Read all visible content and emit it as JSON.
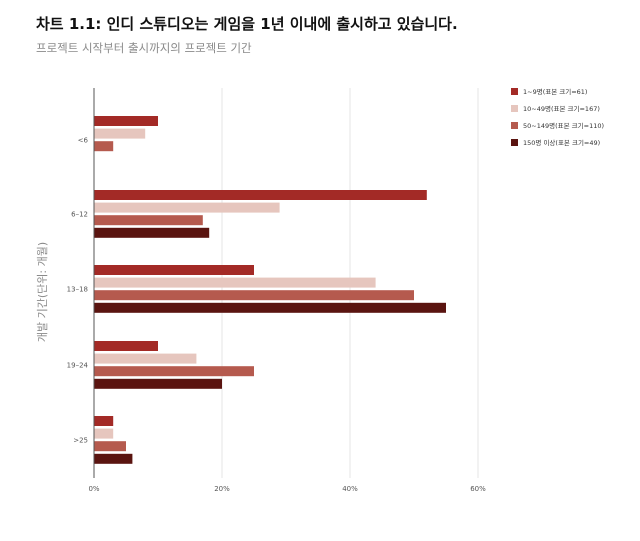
{
  "chart_data": {
    "type": "bar",
    "orientation": "horizontal",
    "title": "차트 1.1: 인디 스튜디오는 게임을 1년 이내에 출시하고 있습니다.",
    "subtitle": "프로젝트 시작부터 출시까지의 프로젝트 기간",
    "ylabel": "개발 기간(단위: 개월)",
    "xlabel": "",
    "categories": [
      "<6",
      "6–12",
      "13–18",
      "19–24",
      ">25"
    ],
    "xlim": [
      0,
      0.6
    ],
    "xticks": [
      0,
      0.2,
      0.4,
      0.6
    ],
    "xtick_labels": [
      "0%",
      "20%",
      "40%",
      "60%"
    ],
    "grid": "vertical",
    "legend_position": "top-right",
    "series": [
      {
        "name": "1~9명(표본 크기=61)",
        "color": "#a32a26",
        "values": [
          0.1,
          0.52,
          0.25,
          0.1,
          0.03
        ]
      },
      {
        "name": "10~49명(표본 크기=167)",
        "color": "#e6c6be",
        "values": [
          0.08,
          0.29,
          0.44,
          0.16,
          0.03
        ]
      },
      {
        "name": "50~149명(표본 크기=110)",
        "color": "#b55a4e",
        "values": [
          0.03,
          0.17,
          0.5,
          0.25,
          0.05
        ]
      },
      {
        "name": "150명 이상(표본 크기=49)",
        "color": "#5a1410",
        "values": [
          0.0,
          0.18,
          0.55,
          0.2,
          0.06
        ]
      }
    ]
  }
}
